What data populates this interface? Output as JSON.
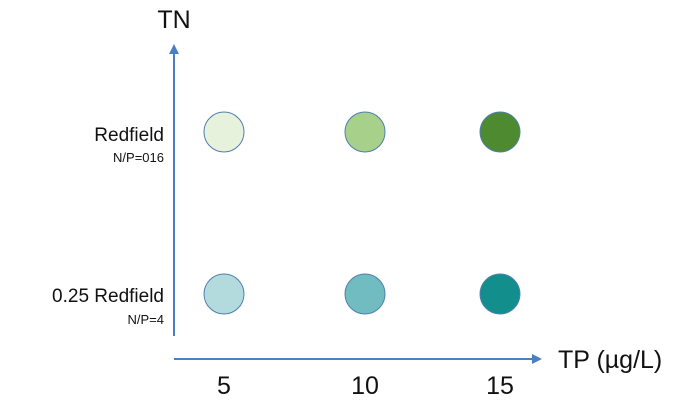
{
  "y_axis": {
    "title": "TN",
    "levels": [
      {
        "label": "Redfield",
        "sublabel": "N/P=016"
      },
      {
        "label": "0.25 Redfield",
        "sublabel": "N/P=4"
      }
    ]
  },
  "x_axis": {
    "title": "TP (µg/L)",
    "ticks": [
      "5",
      "10",
      "15"
    ]
  },
  "cells": [
    {
      "row": 0,
      "col": 0,
      "fill": "#e6f2dc"
    },
    {
      "row": 0,
      "col": 1,
      "fill": "#a7d18a"
    },
    {
      "row": 0,
      "col": 2,
      "fill": "#4e8a2f"
    },
    {
      "row": 1,
      "col": 0,
      "fill": "#b3dadd"
    },
    {
      "row": 1,
      "col": 1,
      "fill": "#70bcc1"
    },
    {
      "row": 1,
      "col": 2,
      "fill": "#128f8c"
    }
  ],
  "colors": {
    "axis": "#4a7fc1",
    "circle_stroke": "#4f7fae"
  }
}
